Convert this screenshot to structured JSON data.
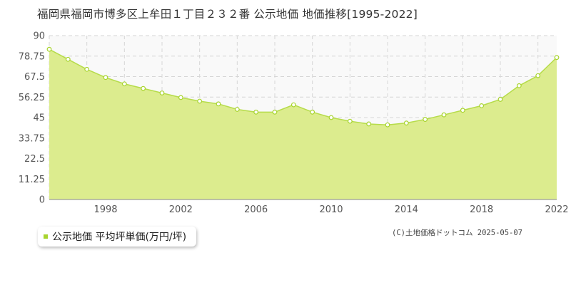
{
  "title": "福岡県福岡市博多区上牟田１丁目２３２番 公示地価 地価推移[1995-2022]",
  "legend": {
    "label": "公示地価 平均坪単価(万円/坪)"
  },
  "credit": "(C)土地価格ドットコム 2025-05-07",
  "colors": {
    "fill": "#dcec8e",
    "line": "#b6dc4a",
    "marker": "#a8d42e",
    "legend_swatch": "#a8d42e"
  },
  "chart_data": {
    "type": "area",
    "title": "福岡県福岡市博多区上牟田１丁目２３２番 公示地価 地価推移[1995-2022]",
    "xlabel": "",
    "ylabel": "",
    "x": [
      1995,
      1996,
      1997,
      1998,
      1999,
      2000,
      2001,
      2002,
      2003,
      2004,
      2005,
      2006,
      2007,
      2008,
      2009,
      2010,
      2011,
      2012,
      2013,
      2014,
      2015,
      2016,
      2017,
      2018,
      2019,
      2020,
      2021,
      2022
    ],
    "series": [
      {
        "name": "公示地価 平均坪単価(万円/坪)",
        "values": [
          82.5,
          77.0,
          71.5,
          67.0,
          63.5,
          61.0,
          58.5,
          56.0,
          54.0,
          52.5,
          49.5,
          48.0,
          48.0,
          52.0,
          48.0,
          45.0,
          43.0,
          41.5,
          41.0,
          42.0,
          44.0,
          46.5,
          49.0,
          51.5,
          55.0,
          62.5,
          68.0,
          78.0
        ]
      }
    ],
    "xlim": [
      1995,
      2022
    ],
    "ylim": [
      0,
      90
    ],
    "yticks": [
      0,
      11.25,
      22.5,
      33.75,
      45,
      56.25,
      67.5,
      78.75,
      90
    ],
    "ytick_labels": [
      "0",
      "11.25",
      "22.5",
      "33.75",
      "45",
      "56.25",
      "67.5",
      "78.75",
      "90"
    ],
    "xticks": [
      1998,
      2002,
      2006,
      2010,
      2014,
      2018,
      2022
    ],
    "xtick_labels": [
      "1998",
      "2002",
      "2006",
      "2010",
      "2014",
      "2018",
      "2022"
    ],
    "grid": true,
    "legend_position": "bottom-left"
  }
}
